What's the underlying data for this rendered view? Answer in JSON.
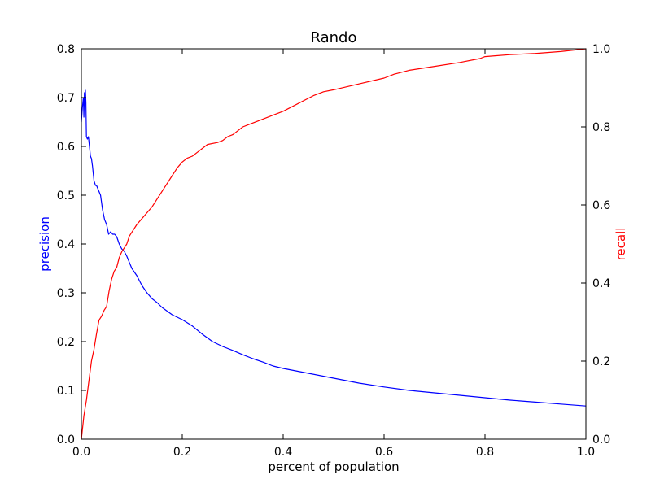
{
  "chart_data": {
    "type": "line",
    "title": "Rando",
    "xlabel": "percent of population",
    "ylabel_left": "precision",
    "ylabel_right": "recall",
    "xlim": [
      0.0,
      1.0
    ],
    "ylim_left": [
      0.0,
      0.8
    ],
    "ylim_right": [
      0.0,
      1.0
    ],
    "xticks": [
      "0.0",
      "0.2",
      "0.4",
      "0.6",
      "0.8",
      "1.0"
    ],
    "yticks_left": [
      "0.0",
      "0.1",
      "0.2",
      "0.3",
      "0.4",
      "0.5",
      "0.6",
      "0.7",
      "0.8"
    ],
    "yticks_right": [
      "0.0",
      "0.2",
      "0.4",
      "0.6",
      "0.8",
      "1.0"
    ],
    "grid": false,
    "colors": {
      "precision": "#0000ff",
      "recall": "#ff0000",
      "precision_label": "#0000ff",
      "recall_label": "#ff0000",
      "axes": "#000000"
    },
    "series": [
      {
        "axis": "left",
        "x": [
          0.0,
          0.002,
          0.004,
          0.005,
          0.006,
          0.007,
          0.008,
          0.009,
          0.01,
          0.012,
          0.014,
          0.016,
          0.018,
          0.02,
          0.022,
          0.025,
          0.028,
          0.03,
          0.034,
          0.038,
          0.042,
          0.046,
          0.05,
          0.054,
          0.058,
          0.062,
          0.066,
          0.07,
          0.075,
          0.08,
          0.085,
          0.09,
          0.1,
          0.11,
          0.12,
          0.13,
          0.14,
          0.15,
          0.16,
          0.18,
          0.2,
          0.22,
          0.24,
          0.26,
          0.28,
          0.3,
          0.32,
          0.34,
          0.36,
          0.38,
          0.4,
          0.45,
          0.5,
          0.55,
          0.6,
          0.65,
          0.7,
          0.75,
          0.8,
          0.85,
          0.9,
          0.95,
          1.0
        ],
        "y": [
          0.65,
          0.68,
          0.7,
          0.66,
          0.71,
          0.7,
          0.715,
          0.69,
          0.62,
          0.615,
          0.62,
          0.6,
          0.58,
          0.575,
          0.56,
          0.53,
          0.52,
          0.52,
          0.51,
          0.5,
          0.47,
          0.45,
          0.44,
          0.42,
          0.425,
          0.42,
          0.42,
          0.415,
          0.4,
          0.39,
          0.385,
          0.375,
          0.35,
          0.335,
          0.315,
          0.3,
          0.288,
          0.28,
          0.27,
          0.255,
          0.245,
          0.232,
          0.215,
          0.2,
          0.19,
          0.182,
          0.173,
          0.165,
          0.158,
          0.15,
          0.145,
          0.135,
          0.125,
          0.115,
          0.107,
          0.1,
          0.095,
          0.09,
          0.085,
          0.08,
          0.076,
          0.072,
          0.068
        ]
      },
      {
        "axis": "right",
        "x": [
          0.0,
          0.005,
          0.01,
          0.015,
          0.02,
          0.025,
          0.03,
          0.035,
          0.04,
          0.045,
          0.05,
          0.055,
          0.06,
          0.065,
          0.07,
          0.075,
          0.08,
          0.085,
          0.09,
          0.095,
          0.1,
          0.11,
          0.12,
          0.13,
          0.14,
          0.15,
          0.16,
          0.17,
          0.18,
          0.19,
          0.2,
          0.21,
          0.22,
          0.23,
          0.24,
          0.25,
          0.27,
          0.28,
          0.29,
          0.3,
          0.31,
          0.32,
          0.33,
          0.35,
          0.38,
          0.4,
          0.43,
          0.46,
          0.48,
          0.5,
          0.55,
          0.6,
          0.62,
          0.65,
          0.7,
          0.75,
          0.79,
          0.8,
          0.82,
          0.85,
          0.9,
          0.95,
          1.0
        ],
        "y": [
          0.0,
          0.06,
          0.1,
          0.15,
          0.2,
          0.23,
          0.27,
          0.305,
          0.315,
          0.33,
          0.34,
          0.38,
          0.41,
          0.43,
          0.44,
          0.465,
          0.48,
          0.49,
          0.5,
          0.52,
          0.53,
          0.55,
          0.565,
          0.58,
          0.595,
          0.615,
          0.635,
          0.655,
          0.675,
          0.695,
          0.71,
          0.72,
          0.725,
          0.735,
          0.745,
          0.755,
          0.76,
          0.765,
          0.775,
          0.78,
          0.79,
          0.8,
          0.805,
          0.815,
          0.83,
          0.84,
          0.86,
          0.88,
          0.89,
          0.895,
          0.91,
          0.925,
          0.935,
          0.945,
          0.955,
          0.965,
          0.975,
          0.98,
          0.982,
          0.985,
          0.988,
          0.993,
          1.0
        ]
      }
    ]
  }
}
